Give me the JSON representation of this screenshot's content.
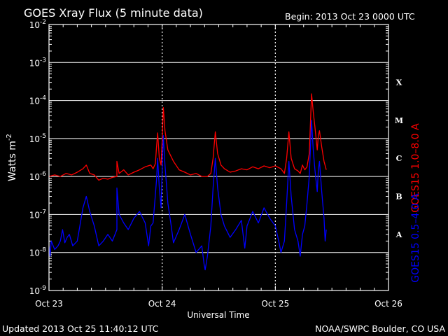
{
  "chart_data": {
    "type": "line",
    "title": "GOES Xray Flux (5 minute data)",
    "begin_label": "Begin:  2013 Oct 23 0000 UTC",
    "xlabel": "Universal Time",
    "ylabel_main": "Watts m",
    "ylabel_exp": "-2",
    "x_ticks": [
      {
        "day": 0,
        "label": "Oct 23"
      },
      {
        "day": 1,
        "label": "Oct 24"
      },
      {
        "day": 2,
        "label": "Oct 25"
      },
      {
        "day": 3,
        "label": "Oct 26"
      }
    ],
    "xlim": [
      0,
      3
    ],
    "y_scale": "log",
    "ylim": [
      1e-09,
      0.01
    ],
    "y_ticks": [
      {
        "value": 0.01,
        "base": "10",
        "exp": "-2"
      },
      {
        "value": 0.001,
        "base": "10",
        "exp": "-3"
      },
      {
        "value": 0.0001,
        "base": "10",
        "exp": "-4"
      },
      {
        "value": 1e-05,
        "base": "10",
        "exp": "-5"
      },
      {
        "value": 1e-06,
        "base": "10",
        "exp": "-6"
      },
      {
        "value": 1e-07,
        "base": "10",
        "exp": "-7"
      },
      {
        "value": 1e-08,
        "base": "10",
        "exp": "-8"
      },
      {
        "value": 1e-09,
        "base": "10",
        "exp": "-9"
      }
    ],
    "flare_classes": [
      {
        "label": "X",
        "value": 0.0003
      },
      {
        "label": "M",
        "value": 3e-05
      },
      {
        "label": "C",
        "value": 3e-06
      },
      {
        "label": "B",
        "value": 3e-07
      },
      {
        "label": "A",
        "value": 3e-08
      }
    ],
    "grid": true,
    "series": [
      {
        "name": "GOES15 1.0–8.0 A",
        "color": "#ff0000",
        "points": [
          [
            0.0,
            1e-06
          ],
          [
            0.05,
            1.1e-06
          ],
          [
            0.1,
            1e-06
          ],
          [
            0.15,
            1.2e-06
          ],
          [
            0.2,
            1.1e-06
          ],
          [
            0.25,
            1.3e-06
          ],
          [
            0.3,
            1.6e-06
          ],
          [
            0.33,
            2e-06
          ],
          [
            0.36,
            1.2e-06
          ],
          [
            0.4,
            1.1e-06
          ],
          [
            0.44,
            8e-07
          ],
          [
            0.48,
            9e-07
          ],
          [
            0.52,
            8.5e-07
          ],
          [
            0.56,
            9.5e-07
          ],
          [
            0.6,
            1e-06
          ],
          [
            0.6,
            2.5e-06
          ],
          [
            0.62,
            1.2e-06
          ],
          [
            0.66,
            1.5e-06
          ],
          [
            0.7,
            1.1e-06
          ],
          [
            0.75,
            1.3e-06
          ],
          [
            0.8,
            1.5e-06
          ],
          [
            0.85,
            1.8e-06
          ],
          [
            0.9,
            2e-06
          ],
          [
            0.92,
            1.6e-06
          ],
          [
            0.94,
            2.2e-06
          ],
          [
            0.95,
            6e-06
          ],
          [
            0.96,
            1.4e-05
          ],
          [
            0.975,
            3e-06
          ],
          [
            0.99,
            2e-06
          ],
          [
            1.0,
            9e-06
          ],
          [
            1.01,
            6.5e-05
          ],
          [
            1.025,
            1.6e-05
          ],
          [
            1.05,
            5e-06
          ],
          [
            1.1,
            2.5e-06
          ],
          [
            1.15,
            1.5e-06
          ],
          [
            1.2,
            1.3e-06
          ],
          [
            1.25,
            1.1e-06
          ],
          [
            1.3,
            1.2e-06
          ],
          [
            1.35,
            1e-06
          ],
          [
            1.4,
            1e-06
          ],
          [
            1.43,
            1.2e-06
          ],
          [
            1.45,
            3e-06
          ],
          [
            1.47,
            1.5e-05
          ],
          [
            1.49,
            4e-06
          ],
          [
            1.52,
            2e-06
          ],
          [
            1.55,
            1.6e-06
          ],
          [
            1.6,
            1.3e-06
          ],
          [
            1.65,
            1.4e-06
          ],
          [
            1.7,
            1.6e-06
          ],
          [
            1.75,
            1.5e-06
          ],
          [
            1.8,
            1.8e-06
          ],
          [
            1.85,
            1.6e-06
          ],
          [
            1.9,
            1.9e-06
          ],
          [
            1.95,
            1.7e-06
          ],
          [
            2.0,
            1.9e-06
          ],
          [
            2.05,
            1.6e-06
          ],
          [
            2.08,
            1.2e-06
          ],
          [
            2.1,
            3e-06
          ],
          [
            2.12,
            1.5e-05
          ],
          [
            2.14,
            3e-06
          ],
          [
            2.17,
            1.6e-06
          ],
          [
            2.2,
            1.4e-06
          ],
          [
            2.22,
            1.2e-06
          ],
          [
            2.24,
            2e-06
          ],
          [
            2.26,
            1.5e-06
          ],
          [
            2.28,
            1.8e-06
          ],
          [
            2.3,
            4e-06
          ],
          [
            2.32,
            0.00015
          ],
          [
            2.335,
            5e-05
          ],
          [
            2.35,
            2e-05
          ],
          [
            2.37,
            5e-06
          ],
          [
            2.38,
            1.2e-05
          ],
          [
            2.39,
            1.6e-05
          ],
          [
            2.41,
            6e-06
          ],
          [
            2.43,
            2.5e-06
          ],
          [
            2.45,
            1.5e-06
          ]
        ]
      },
      {
        "name": "GOES15 0.5–4.0 A",
        "color": "#0000ff",
        "points": [
          [
            0.0,
            1.5e-08
          ],
          [
            0.01,
            8e-09
          ],
          [
            0.02,
            2e-08
          ],
          [
            0.05,
            1.2e-08
          ],
          [
            0.08,
            1.5e-08
          ],
          [
            0.1,
            2e-08
          ],
          [
            0.12,
            4e-08
          ],
          [
            0.14,
            1.8e-08
          ],
          [
            0.16,
            2.5e-08
          ],
          [
            0.18,
            3e-08
          ],
          [
            0.21,
            1.5e-08
          ],
          [
            0.25,
            2e-08
          ],
          [
            0.3,
            1.5e-07
          ],
          [
            0.33,
            3e-07
          ],
          [
            0.36,
            1.2e-07
          ],
          [
            0.4,
            5e-08
          ],
          [
            0.44,
            1.5e-08
          ],
          [
            0.48,
            2e-08
          ],
          [
            0.52,
            3e-08
          ],
          [
            0.56,
            2e-08
          ],
          [
            0.6,
            4e-08
          ],
          [
            0.6,
            5e-07
          ],
          [
            0.62,
            1e-07
          ],
          [
            0.66,
            6e-08
          ],
          [
            0.7,
            4e-08
          ],
          [
            0.75,
            8e-08
          ],
          [
            0.8,
            1.2e-07
          ],
          [
            0.85,
            6e-08
          ],
          [
            0.88,
            1.5e-08
          ],
          [
            0.9,
            5e-08
          ],
          [
            0.92,
            6e-08
          ],
          [
            0.95,
            8e-07
          ],
          [
            0.96,
            3e-06
          ],
          [
            0.975,
            5e-07
          ],
          [
            0.99,
            1.5e-07
          ],
          [
            1.0,
            1.5e-06
          ],
          [
            1.01,
            1.2e-05
          ],
          [
            1.025,
            2e-06
          ],
          [
            1.05,
            2e-07
          ],
          [
            1.08,
            5e-08
          ],
          [
            1.1,
            1.8e-08
          ],
          [
            1.15,
            4e-08
          ],
          [
            1.2,
            1e-07
          ],
          [
            1.25,
            3e-08
          ],
          [
            1.3,
            1e-08
          ],
          [
            1.35,
            1.5e-08
          ],
          [
            1.37,
            5e-09
          ],
          [
            1.38,
            3.5e-09
          ],
          [
            1.4,
            8e-09
          ],
          [
            1.43,
            5e-08
          ],
          [
            1.45,
            5e-07
          ],
          [
            1.47,
            3e-06
          ],
          [
            1.49,
            5e-07
          ],
          [
            1.52,
            1e-07
          ],
          [
            1.55,
            5e-08
          ],
          [
            1.6,
            2.5e-08
          ],
          [
            1.65,
            4e-08
          ],
          [
            1.7,
            7e-08
          ],
          [
            1.73,
            1.3e-08
          ],
          [
            1.75,
            5e-08
          ],
          [
            1.8,
            1.2e-07
          ],
          [
            1.85,
            6e-08
          ],
          [
            1.9,
            1.5e-07
          ],
          [
            1.95,
            8e-08
          ],
          [
            2.0,
            5e-08
          ],
          [
            2.03,
            2e-08
          ],
          [
            2.05,
            1e-08
          ],
          [
            2.08,
            2e-08
          ],
          [
            2.1,
            2e-07
          ],
          [
            2.12,
            2.5e-06
          ],
          [
            2.14,
            3e-07
          ],
          [
            2.17,
            4e-08
          ],
          [
            2.2,
            2e-08
          ],
          [
            2.22,
            8e-09
          ],
          [
            2.24,
            3e-08
          ],
          [
            2.26,
            5e-08
          ],
          [
            2.28,
            2e-07
          ],
          [
            2.3,
            1e-06
          ],
          [
            2.32,
            3e-05
          ],
          [
            2.335,
            5e-06
          ],
          [
            2.35,
            1.5e-06
          ],
          [
            2.37,
            4e-07
          ],
          [
            2.38,
            1.5e-06
          ],
          [
            2.39,
            2.5e-06
          ],
          [
            2.41,
            4e-07
          ],
          [
            2.43,
            8e-08
          ],
          [
            2.44,
            2e-08
          ],
          [
            2.45,
            4e-08
          ]
        ]
      }
    ],
    "updated": "Updated 2013 Oct 25 11:40:12 UTC",
    "credit": "NOAA/SWPC Boulder, CO USA",
    "colors": {
      "background": "#000000",
      "frame": "#ffffff",
      "grid": "#ffffff"
    }
  }
}
